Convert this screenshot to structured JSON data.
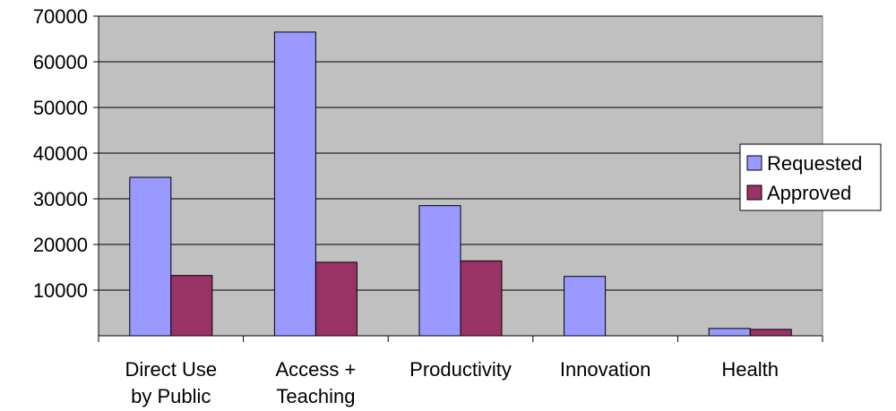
{
  "chart_data": {
    "type": "bar",
    "title": "",
    "xlabel": "",
    "ylabel": "",
    "categories": [
      [
        "Direct Use",
        "by Public"
      ],
      [
        "Access +",
        "Teaching"
      ],
      [
        "Productivity"
      ],
      [
        "Innovation"
      ],
      [
        "Health"
      ]
    ],
    "series": [
      {
        "name": "Requested",
        "color": "#9999ff",
        "values": [
          34700,
          66500,
          28500,
          13000,
          1600
        ]
      },
      {
        "name": "Approved",
        "color": "#993366",
        "values": [
          13200,
          16100,
          16400,
          0,
          1400
        ]
      }
    ],
    "ylim": [
      0,
      70000
    ],
    "yticks": [
      10000,
      20000,
      30000,
      40000,
      50000,
      60000,
      70000
    ],
    "grid": true,
    "plot_background": "#c0c0c0",
    "legend_position": "right"
  }
}
